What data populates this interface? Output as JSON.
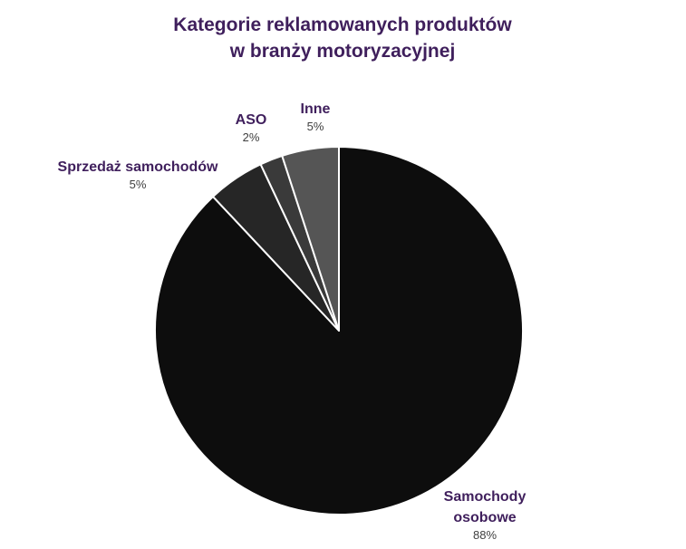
{
  "chart_data": {
    "type": "pie",
    "title_lines": [
      "Kategorie reklamowanych produktów",
      "w branży motoryzacyjnej"
    ],
    "slices": [
      {
        "label_lines": [
          "Samochody",
          "osobowe"
        ],
        "value": 88,
        "value_label": "88%",
        "color": "#0d0d0d"
      },
      {
        "label_lines": [
          "Sprzedaż samochodów"
        ],
        "value": 5,
        "value_label": "5%",
        "color": "#262626"
      },
      {
        "label_lines": [
          "ASO"
        ],
        "value": 2,
        "value_label": "2%",
        "color": "#3a3a3a"
      },
      {
        "label_lines": [
          "Inne"
        ],
        "value": 5,
        "value_label": "5%",
        "color": "#555555"
      }
    ],
    "start": "12 o'clock",
    "direction": "clockwise",
    "legend": "none",
    "label_color": "#3f1f5c",
    "value_label_color": "#404040",
    "slice_border_color": "#ffffff"
  }
}
